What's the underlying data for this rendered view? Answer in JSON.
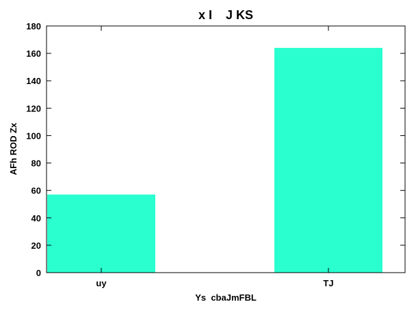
{
  "chart_data": {
    "type": "bar",
    "title": "x I    J KS",
    "xlabel": "Ys  cbaJmFBL",
    "ylabel": "AFh ROD Zx",
    "categories": [
      "uy",
      "TJ"
    ],
    "values": [
      57,
      164
    ],
    "ylim": [
      0,
      180
    ],
    "yticks": [
      0,
      20,
      40,
      60,
      80,
      100,
      120,
      140,
      160,
      180
    ],
    "bar_color": "#2affd0",
    "grid": false,
    "legend": "none"
  }
}
